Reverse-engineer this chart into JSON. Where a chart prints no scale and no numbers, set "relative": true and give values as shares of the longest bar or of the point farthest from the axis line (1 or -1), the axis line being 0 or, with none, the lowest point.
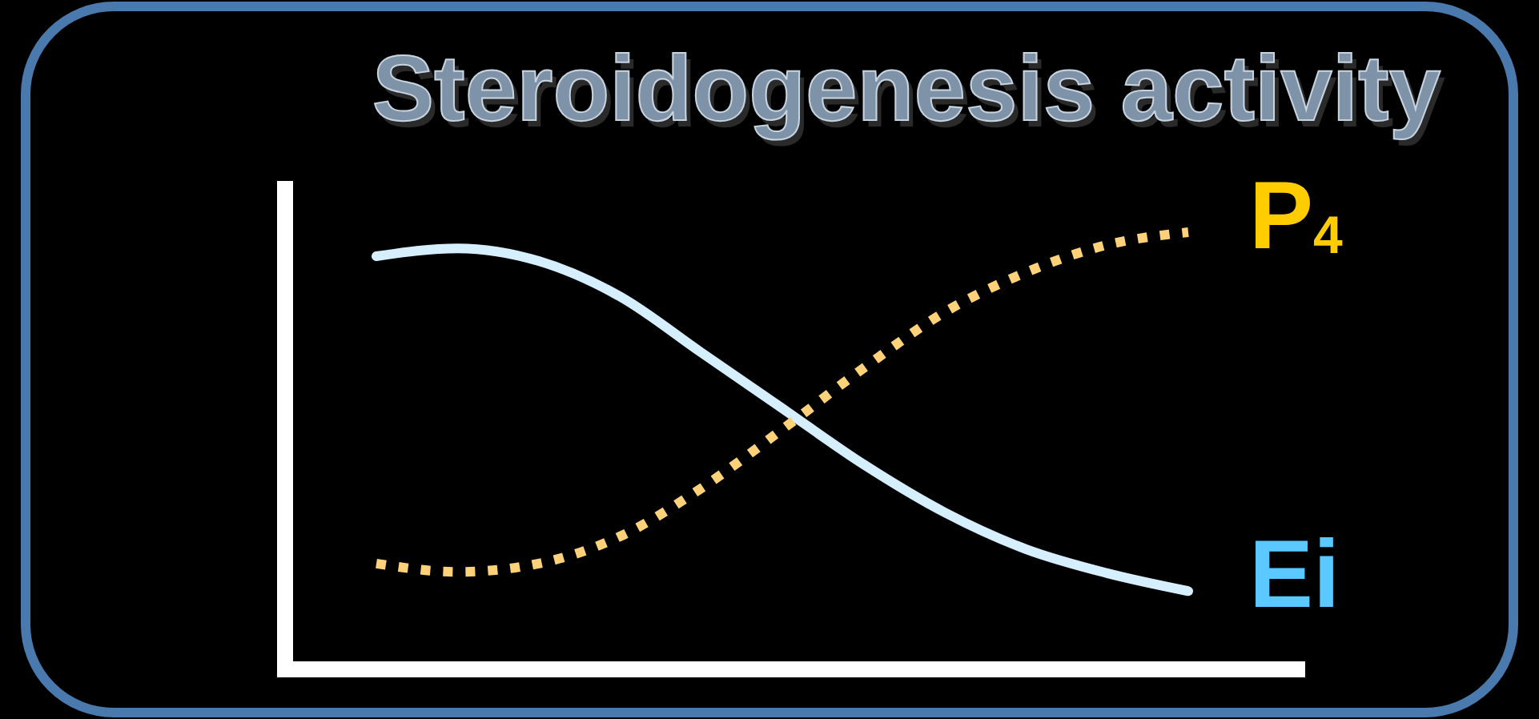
{
  "chart_data": {
    "type": "line",
    "title": "Steroidogenesis activity",
    "relative": true,
    "categories": [
      null,
      null,
      null,
      null,
      null,
      null,
      null,
      null,
      null,
      null,
      null
    ],
    "series": [
      {
        "name": "Ei",
        "color": "#d6efff",
        "line_style": "solid",
        "values": [
          0.945,
          0.963,
          0.934,
          0.853,
          0.725,
          0.597,
          0.469,
          0.359,
          0.275,
          0.22,
          0.179
        ]
      },
      {
        "name": "P$_{4}$",
        "color": "#ffd27a",
        "line_style": "dotted",
        "values": [
          0.242,
          0.223,
          0.242,
          0.304,
          0.414,
          0.549,
          0.689,
          0.817,
          0.908,
          0.971,
          1
        ]
      }
    ]
  }
}
